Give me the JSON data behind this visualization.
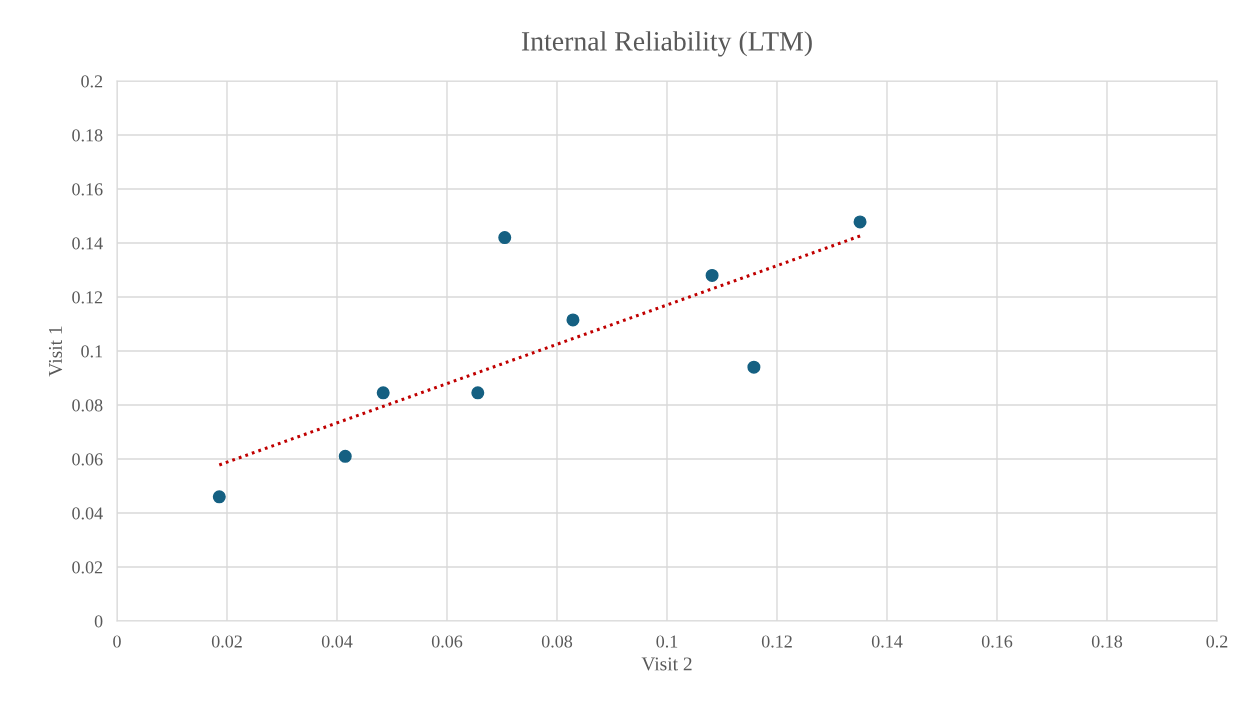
{
  "chart_data": {
    "type": "scatter",
    "title": "Internal Reliability (LTM)",
    "xlabel": "Visit 2",
    "ylabel": "Visit 1",
    "series": [
      {
        "color": "#156082",
        "x": [
          0.0186,
          0.0415,
          0.0484,
          0.0656,
          0.0705,
          0.0829,
          0.1082,
          0.1158,
          0.1351
        ],
        "values": [
          0.046,
          0.061,
          0.0845,
          0.0845,
          0.142,
          0.1115,
          0.128,
          0.094,
          0.1478
        ],
        "marker": "circle"
      },
      {
        "type": "line",
        "color": "#c00000",
        "x": [
          0.0186,
          0.1351
        ],
        "values": [
          0.0578,
          0.1426
        ],
        "line_style": "dotted",
        "marker": "none"
      }
    ],
    "xlim": [
      0,
      0.2
    ],
    "ylim": [
      0,
      0.2
    ],
    "xticks": [
      0,
      0.02,
      0.04,
      0.06,
      0.08,
      0.1,
      0.12,
      0.14,
      0.16,
      0.18,
      0.2
    ],
    "yticks": [
      0,
      0.02,
      0.04,
      0.06,
      0.08,
      0.1,
      0.12,
      0.14,
      0.16,
      0.18,
      0.2
    ],
    "grid": true,
    "legend": false
  }
}
